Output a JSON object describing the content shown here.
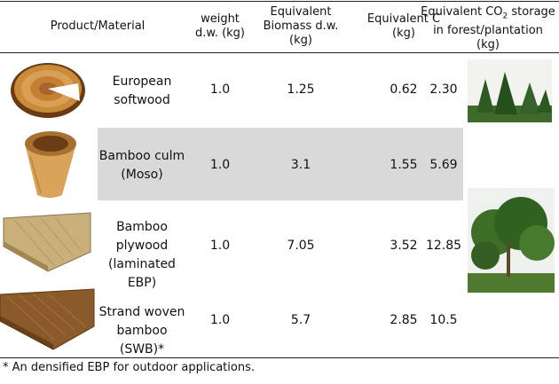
{
  "table": {
    "headers": {
      "product": "Product/Material",
      "weight": [
        "weight",
        "d.w. (kg)"
      ],
      "biomass": [
        "Equivalent",
        "Biomass d.w.",
        "(kg)"
      ],
      "carbon": [
        "Equivalent C",
        "(kg)"
      ],
      "co2": [
        "Equivalent CO",
        "2",
        " storage",
        "in forest/plantation",
        "(kg)"
      ]
    },
    "rows": [
      {
        "name": [
          "European",
          "softwood"
        ],
        "weight": "1.0",
        "biomass": "1.25",
        "carbon": "0.62",
        "co2": "2.30",
        "image": "softwood-log-slice",
        "shaded": false
      },
      {
        "name": [
          "Bamboo culm",
          "(Moso)"
        ],
        "weight": "1.0",
        "biomass": "3.1",
        "carbon": "1.55",
        "co2": "5.69",
        "image": "bamboo-culm-section",
        "shaded": true
      },
      {
        "name": [
          "Bamboo",
          "plywood",
          "(laminated EBP)"
        ],
        "weight": "1.0",
        "biomass": "7.05",
        "carbon": "3.52",
        "co2": "12.85",
        "image": "bamboo-plywood-board",
        "shaded": false
      },
      {
        "name": [
          "Strand woven",
          "bamboo (SWB)*"
        ],
        "weight": "1.0",
        "biomass": "5.7",
        "carbon": "2.85",
        "co2": "10.5",
        "image": "strand-woven-bamboo-board",
        "shaded": false
      }
    ],
    "photos": [
      "softwood-forest-photo",
      "bamboo-plantation-photo"
    ],
    "shade_color": "#d9d9d9"
  },
  "footnote": "* An densified EBP for outdoor applications."
}
